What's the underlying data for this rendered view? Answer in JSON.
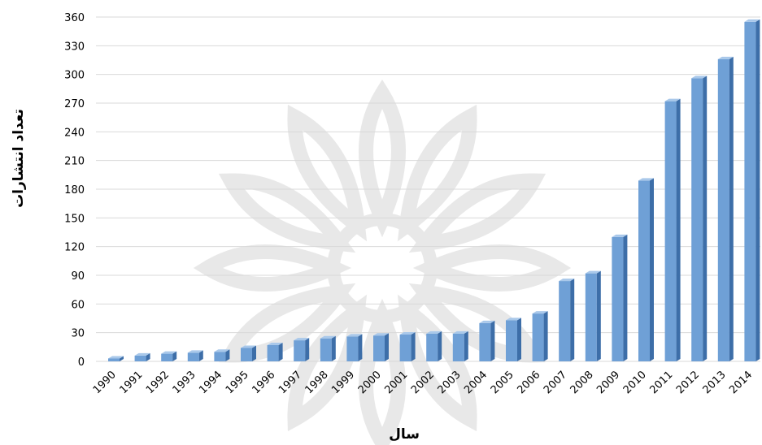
{
  "chart_data": {
    "type": "bar",
    "xlabel": "سال",
    "ylabel": "تعداد انتشارات",
    "categories": [
      "1990",
      "1991",
      "1992",
      "1993",
      "1994",
      "1995",
      "1996",
      "1997",
      "1998",
      "1999",
      "2000",
      "2001",
      "2002",
      "2003",
      "2004",
      "2005",
      "2006",
      "2007",
      "2008",
      "2009",
      "2010",
      "2011",
      "2012",
      "2013",
      "2014"
    ],
    "values": [
      3,
      6,
      8,
      9,
      10,
      14,
      17,
      22,
      24,
      26,
      27,
      28,
      29,
      29,
      40,
      43,
      50,
      84,
      92,
      130,
      189,
      272,
      296,
      316,
      355
    ],
    "ylim": [
      0,
      360
    ],
    "yticks": [
      0,
      30,
      60,
      90,
      120,
      150,
      180,
      210,
      240,
      270,
      300,
      330,
      360
    ],
    "grid": true,
    "colors": {
      "bar_front": "#6fa0d6",
      "bar_side": "#3d6ea8",
      "bar_top": "#a9c8ea"
    }
  }
}
